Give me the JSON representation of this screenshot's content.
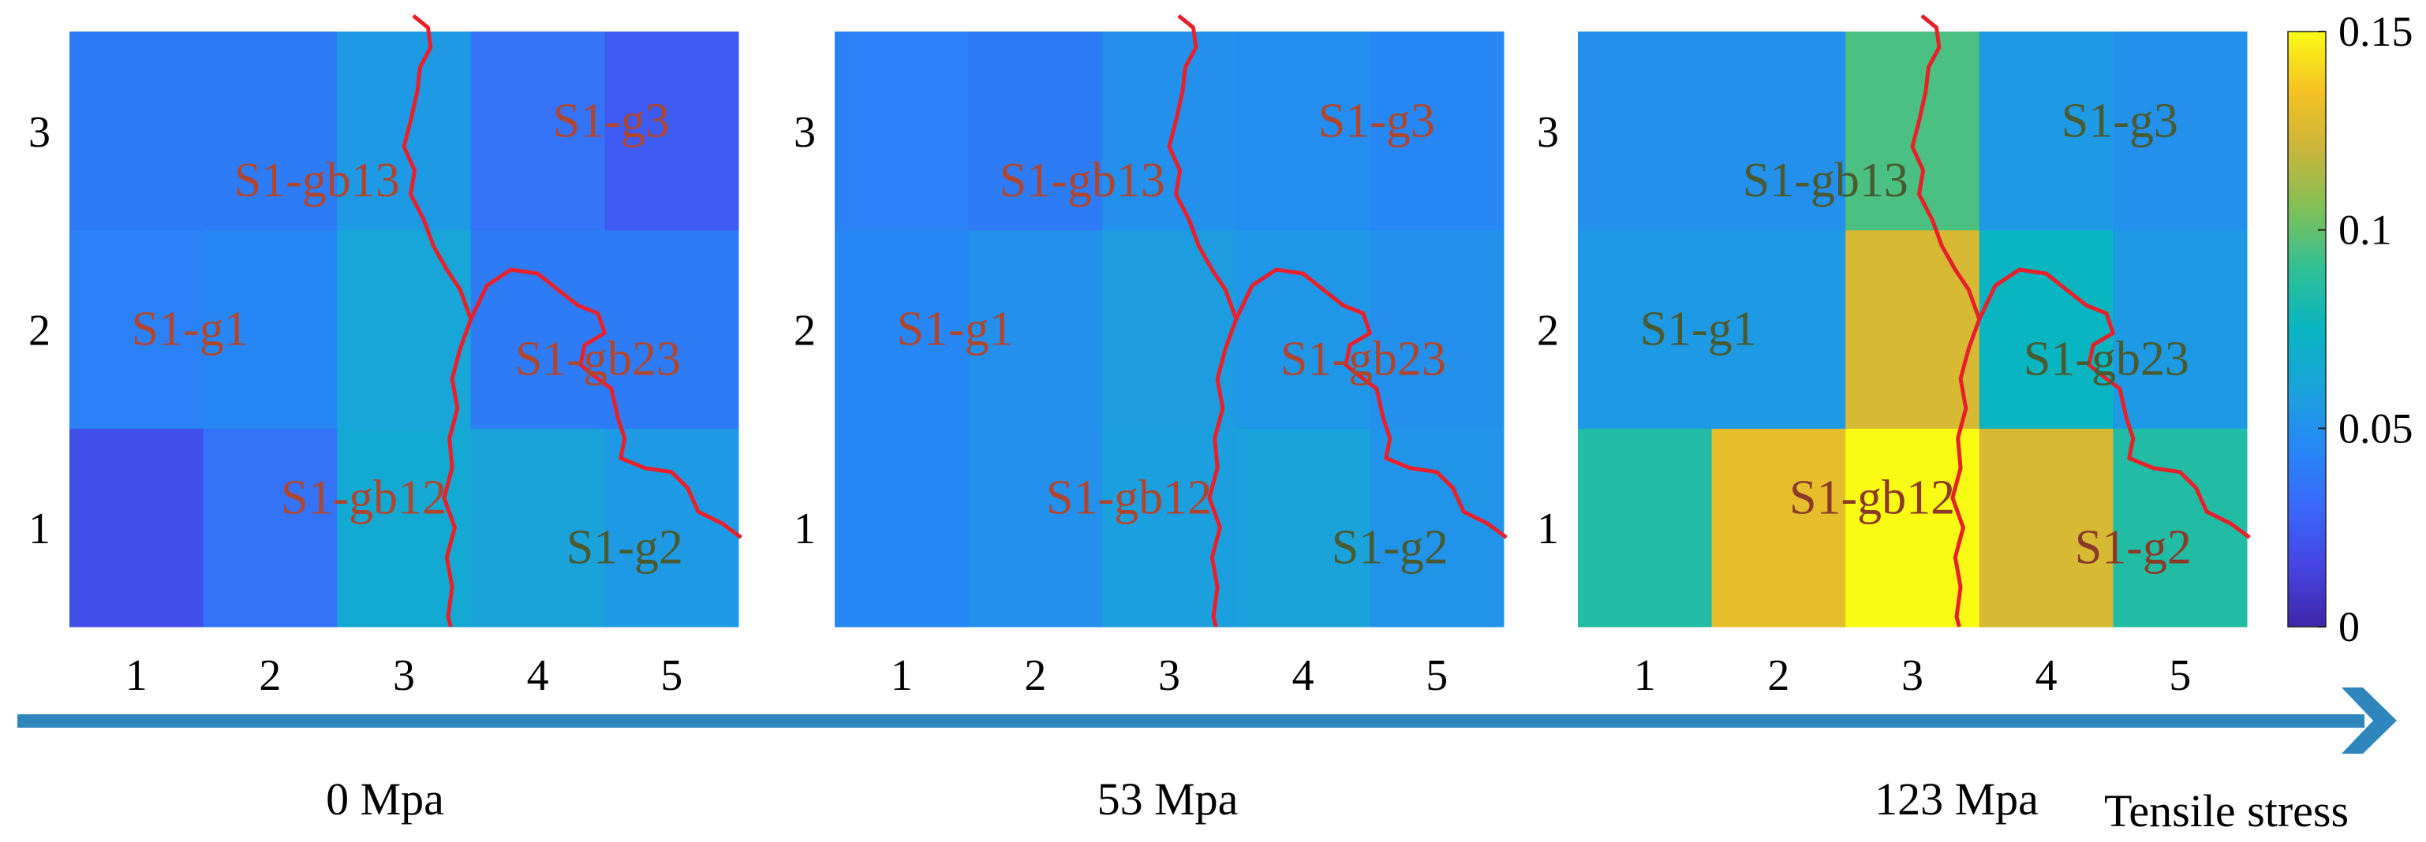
{
  "chart_data": [
    {
      "type": "heatmap",
      "caption": "0 Mpa",
      "x": [
        1,
        2,
        3,
        4,
        5
      ],
      "y": [
        1,
        2,
        3
      ],
      "xticks": [
        "1",
        "2",
        "3",
        "4",
        "5"
      ],
      "yticks": [
        "1",
        "2",
        "3"
      ],
      "values": [
        [
          0.02,
          0.035,
          0.065,
          0.06,
          0.055
        ],
        [
          0.042,
          0.045,
          0.062,
          0.04,
          0.04
        ],
        [
          0.04,
          0.04,
          0.055,
          0.035,
          0.025
        ]
      ],
      "labels": [
        {
          "text": "S1-g3",
          "x": 4.55,
          "y": 3.05,
          "color": "#b0452e"
        },
        {
          "text": "S1-gb13",
          "x": 2.35,
          "y": 2.75,
          "color": "#b0452e"
        },
        {
          "text": "S1-g1",
          "x": 1.4,
          "y": 2.0,
          "color": "#b0452e"
        },
        {
          "text": "S1-gb23",
          "x": 4.45,
          "y": 1.85,
          "color": "#b0452e"
        },
        {
          "text": "S1-gb12",
          "x": 2.7,
          "y": 1.15,
          "color": "#b0452e"
        },
        {
          "text": "S1-g2",
          "x": 4.65,
          "y": 0.9,
          "color": "#4a5a30"
        }
      ]
    },
    {
      "type": "heatmap",
      "caption": "53 Mpa",
      "x": [
        1,
        2,
        3,
        4,
        5
      ],
      "y": [
        1,
        2,
        3
      ],
      "xticks": [
        "1",
        "2",
        "3",
        "4",
        "5"
      ],
      "yticks": [
        "1",
        "2",
        "3"
      ],
      "values": [
        [
          0.045,
          0.05,
          0.058,
          0.06,
          0.052
        ],
        [
          0.045,
          0.05,
          0.057,
          0.053,
          0.05
        ],
        [
          0.042,
          0.04,
          0.05,
          0.048,
          0.045
        ]
      ],
      "labels": [
        {
          "text": "S1-g3",
          "x": 4.55,
          "y": 3.05,
          "color": "#b0452e"
        },
        {
          "text": "S1-gb13",
          "x": 2.35,
          "y": 2.75,
          "color": "#b0452e"
        },
        {
          "text": "S1-g1",
          "x": 1.4,
          "y": 2.0,
          "color": "#b0452e"
        },
        {
          "text": "S1-gb23",
          "x": 4.45,
          "y": 1.85,
          "color": "#b0452e"
        },
        {
          "text": "S1-gb12",
          "x": 2.7,
          "y": 1.15,
          "color": "#b0452e"
        },
        {
          "text": "S1-g2",
          "x": 4.65,
          "y": 0.9,
          "color": "#4a5a30"
        }
      ]
    },
    {
      "type": "heatmap",
      "caption": "123 Mpa",
      "x": [
        1,
        2,
        3,
        4,
        5
      ],
      "y": [
        1,
        2,
        3
      ],
      "xticks": [
        "1",
        "2",
        "3",
        "4",
        "5"
      ],
      "yticks": [
        "1",
        "2",
        "3"
      ],
      "values": [
        [
          0.085,
          0.13,
          0.15,
          0.125,
          0.085
        ],
        [
          0.055,
          0.055,
          0.125,
          0.075,
          0.055
        ],
        [
          0.05,
          0.05,
          0.095,
          0.055,
          0.05
        ]
      ],
      "labels": [
        {
          "text": "S1-g3",
          "x": 4.55,
          "y": 3.05,
          "color": "#4a5a30"
        },
        {
          "text": "S1-gb13",
          "x": 2.35,
          "y": 2.75,
          "color": "#4a5a30"
        },
        {
          "text": "S1-g1",
          "x": 1.4,
          "y": 2.0,
          "color": "#4a5a30"
        },
        {
          "text": "S1-gb23",
          "x": 4.45,
          "y": 1.85,
          "color": "#4a5a30"
        },
        {
          "text": "S1-gb12",
          "x": 2.7,
          "y": 1.15,
          "color": "#8b3a2a"
        },
        {
          "text": "S1-g2",
          "x": 4.65,
          "y": 0.9,
          "color": "#8b3a2a"
        }
      ]
    }
  ],
  "colorbar": {
    "ticks": [
      "0",
      "0.05",
      "0.1",
      "0.15"
    ],
    "tick_values": [
      0,
      0.05,
      0.1,
      0.15
    ],
    "range": [
      0,
      0.15
    ],
    "colormap": "parula"
  },
  "arrow": {
    "label": "Tensile stress",
    "color": "#2f86bd"
  },
  "colors": {
    "boundary": "#e8202a"
  }
}
